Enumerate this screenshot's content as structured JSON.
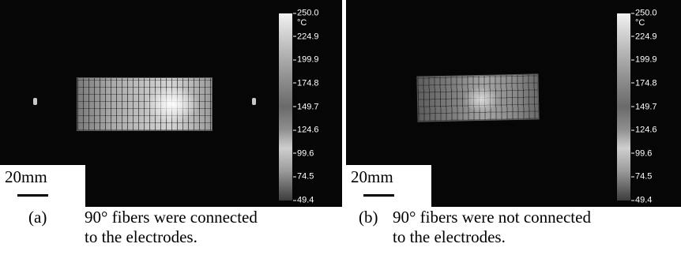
{
  "panels": [
    {
      "id": "a",
      "colorbar": {
        "unit": "°C",
        "ticks": [
          "250.0",
          "224.9",
          "199.9",
          "174.8",
          "149.7",
          "124.6",
          "99.6",
          "74.5",
          "49.4"
        ]
      },
      "scale_bar": "20mm",
      "caption": {
        "label": "(a)",
        "line1": "90° fibers were connected",
        "line2": "to the electrodes."
      }
    },
    {
      "id": "b",
      "colorbar": {
        "unit": "°C",
        "ticks": [
          "250.0",
          "224.9",
          "199.9",
          "174.8",
          "149.7",
          "124.6",
          "99.6",
          "74.5",
          "49.4"
        ]
      },
      "scale_bar": "20mm",
      "caption": {
        "label": "(b)",
        "line1": "90° fibers were not connected",
        "line2": "to the electrodes."
      }
    }
  ]
}
